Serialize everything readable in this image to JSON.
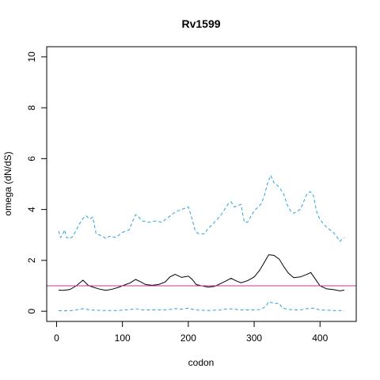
{
  "chart_data": {
    "type": "line",
    "title": "Rv1599",
    "xlabel": "codon",
    "ylabel": "omega (dN/dS)",
    "xlim": [
      -15,
      455
    ],
    "ylim": [
      -0.4,
      10.4
    ],
    "x_ticks": [
      0,
      100,
      200,
      300,
      400
    ],
    "y_ticks": [
      0,
      2,
      4,
      6,
      8,
      10
    ],
    "x_tick_labels": [
      "0",
      "100",
      "200",
      "300",
      "400"
    ],
    "y_tick_labels": [
      "0",
      "2",
      "4",
      "6",
      "8",
      "10"
    ],
    "grid": false,
    "legend": "none",
    "reference_line": {
      "y": 1,
      "color": "#cc3399"
    },
    "series": [
      {
        "role": "estimate",
        "color": "#000000",
        "dash": "solid",
        "x": [
          3,
          10,
          20,
          30,
          40,
          48,
          55,
          65,
          75,
          85,
          95,
          105,
          112,
          120,
          128,
          135,
          145,
          155,
          165,
          172,
          180,
          190,
          200,
          206,
          212,
          220,
          230,
          240,
          250,
          258,
          265,
          272,
          280,
          290,
          300,
          308,
          315,
          322,
          330,
          338,
          345,
          352,
          360,
          370,
          380,
          386,
          392,
          400,
          410,
          420,
          430,
          437
        ],
        "y": [
          0.83,
          0.82,
          0.85,
          1.0,
          1.22,
          1.02,
          0.95,
          0.87,
          0.82,
          0.87,
          0.95,
          1.05,
          1.12,
          1.25,
          1.15,
          1.05,
          1.02,
          1.05,
          1.15,
          1.35,
          1.45,
          1.33,
          1.38,
          1.25,
          1.05,
          1.0,
          0.95,
          0.98,
          1.1,
          1.2,
          1.3,
          1.2,
          1.12,
          1.2,
          1.35,
          1.6,
          1.9,
          2.22,
          2.2,
          2.05,
          1.75,
          1.5,
          1.32,
          1.35,
          1.45,
          1.52,
          1.3,
          1.0,
          0.88,
          0.85,
          0.8,
          0.83
        ]
      },
      {
        "role": "upper",
        "color": "#29a3dc",
        "dash": "dashed",
        "x": [
          3,
          6,
          9,
          12,
          15,
          20,
          25,
          30,
          35,
          40,
          45,
          50,
          55,
          60,
          70,
          75,
          80,
          90,
          100,
          110,
          115,
          120,
          125,
          130,
          140,
          150,
          160,
          170,
          180,
          190,
          200,
          205,
          210,
          215,
          225,
          230,
          240,
          250,
          260,
          265,
          270,
          280,
          285,
          290,
          300,
          310,
          315,
          320,
          325,
          330,
          335,
          340,
          345,
          350,
          355,
          360,
          370,
          380,
          385,
          390,
          395,
          400,
          410,
          420,
          425,
          430,
          437
        ],
        "y": [
          3.15,
          2.9,
          3.0,
          3.2,
          2.9,
          2.85,
          2.95,
          3.2,
          3.45,
          3.65,
          3.75,
          3.62,
          3.7,
          3.05,
          2.95,
          2.85,
          2.95,
          2.9,
          3.1,
          3.2,
          3.5,
          3.8,
          3.7,
          3.55,
          3.5,
          3.55,
          3.5,
          3.7,
          3.9,
          4.0,
          4.1,
          3.7,
          3.2,
          3.05,
          3.05,
          3.25,
          3.5,
          3.8,
          4.2,
          4.3,
          4.1,
          4.2,
          3.5,
          3.5,
          3.95,
          4.2,
          4.5,
          5.0,
          5.35,
          5.05,
          4.95,
          4.8,
          4.6,
          4.2,
          3.95,
          3.85,
          4.0,
          4.6,
          4.7,
          4.55,
          3.9,
          3.6,
          3.3,
          3.1,
          2.95,
          2.75,
          2.9
        ]
      },
      {
        "role": "lower",
        "color": "#29a3dc",
        "dash": "dashed",
        "x": [
          3,
          20,
          30,
          40,
          50,
          70,
          90,
          110,
          120,
          130,
          150,
          170,
          180,
          190,
          200,
          210,
          230,
          250,
          260,
          270,
          280,
          300,
          310,
          318,
          322,
          330,
          338,
          342,
          350,
          360,
          370,
          380,
          390,
          400,
          420,
          437
        ],
        "y": [
          0.02,
          0.02,
          0.05,
          0.1,
          0.05,
          0.03,
          0.03,
          0.06,
          0.1,
          0.05,
          0.05,
          0.06,
          0.1,
          0.08,
          0.12,
          0.05,
          0.03,
          0.05,
          0.1,
          0.08,
          0.05,
          0.05,
          0.07,
          0.2,
          0.38,
          0.3,
          0.32,
          0.15,
          0.08,
          0.05,
          0.05,
          0.1,
          0.12,
          0.05,
          0.03,
          0.03
        ]
      }
    ]
  }
}
